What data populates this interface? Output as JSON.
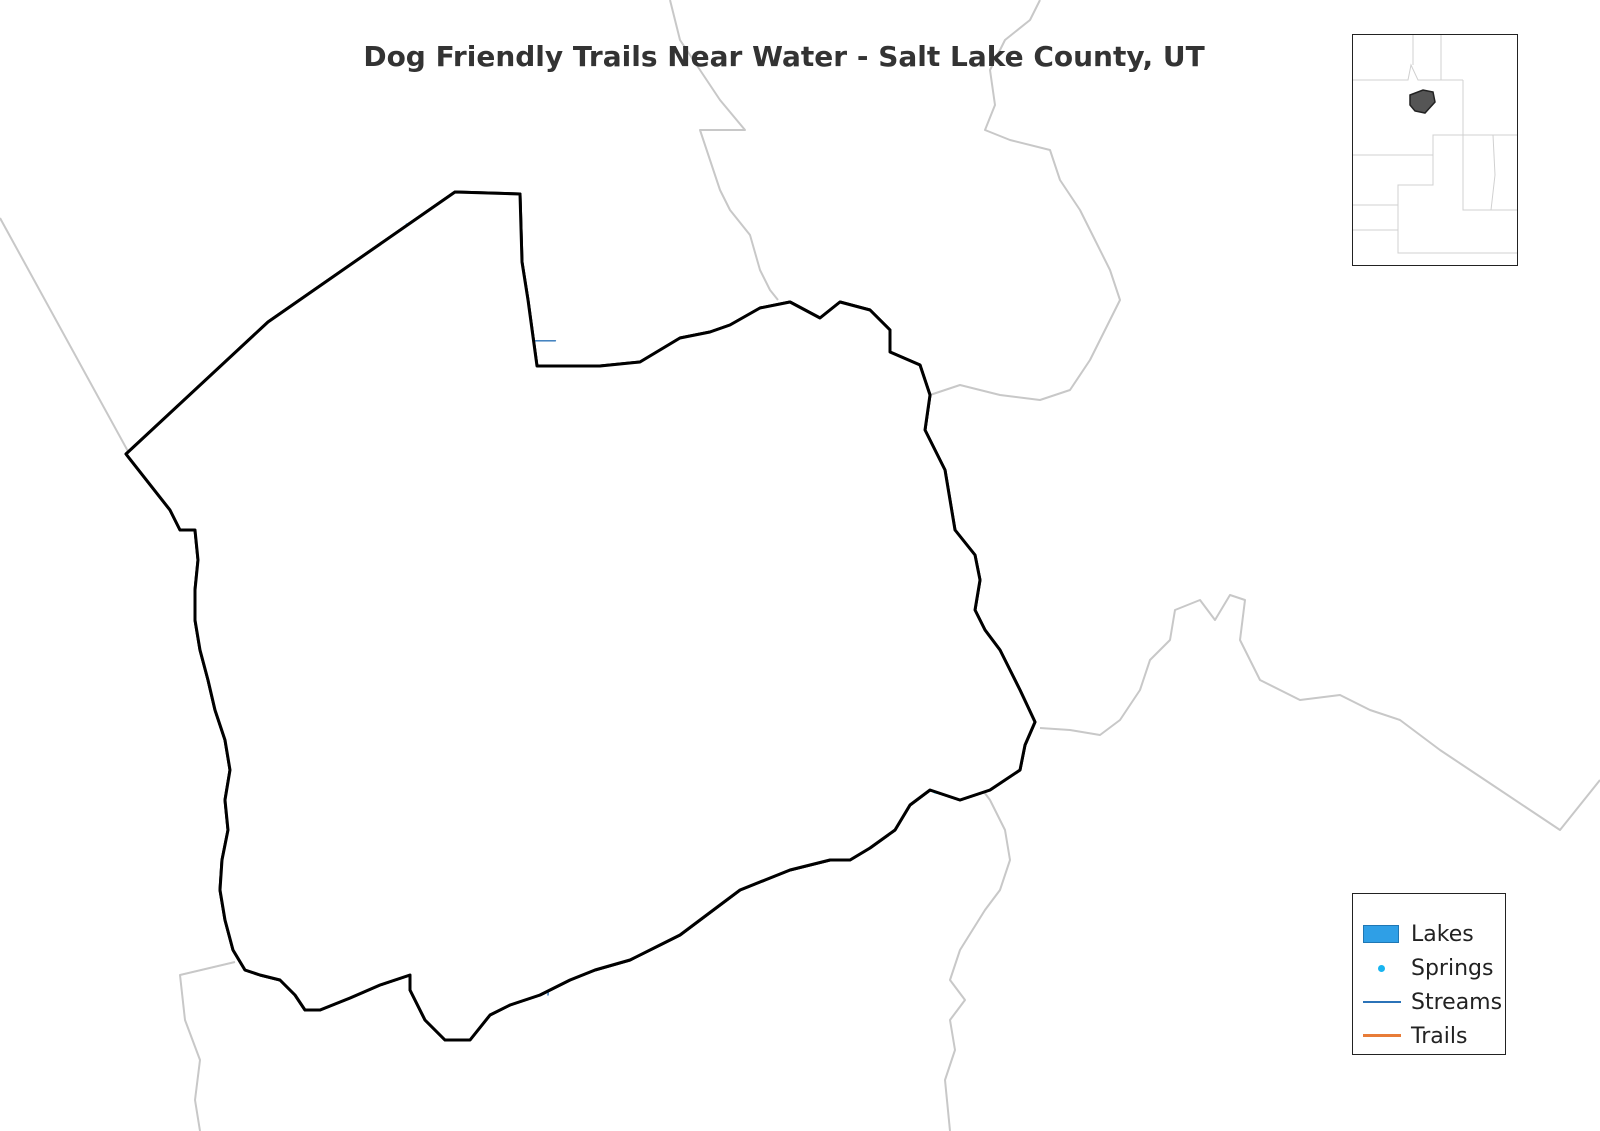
{
  "title": "Dog Friendly Trails Near Water - Salt Lake County, UT",
  "legend": {
    "lakes_label": "Lakes",
    "springs_label": "Springs",
    "streams_label": "Streams",
    "trails_label": "Trails"
  },
  "colors": {
    "lake": "#2f9fe6",
    "spring": "#18b4f0",
    "stream": "#2b73b8",
    "trail": "#e87c38",
    "road": "#777777",
    "county_boundary": "#000000",
    "neighbor_boundary": "#c8c8c8"
  },
  "layers": [
    "Lakes",
    "Springs",
    "Streams",
    "Trails"
  ]
}
